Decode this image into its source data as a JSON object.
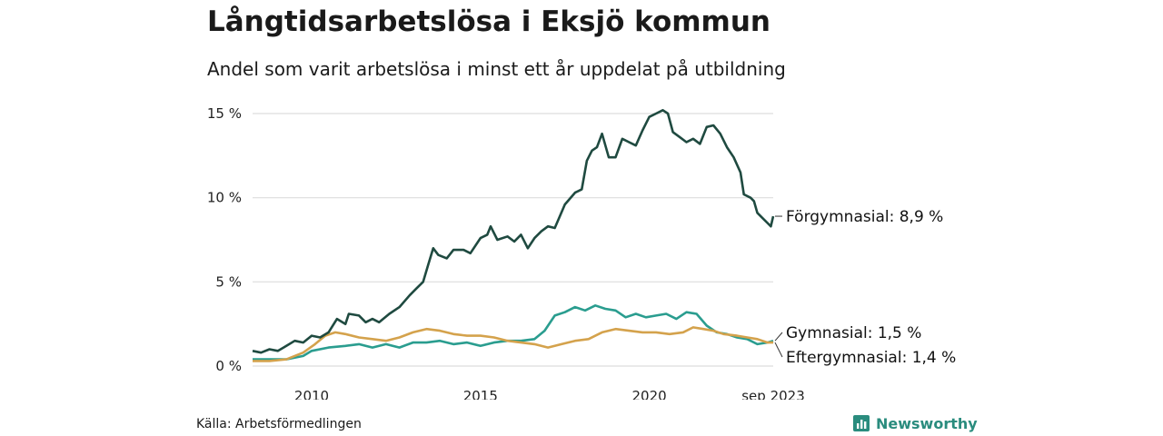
{
  "title": "Långtidsarbetslösa i Eksjö kommun",
  "subtitle": "Andel som varit arbetslösa i minst ett år uppdelat på utbildning",
  "source": "Källa: Arbetsförmedlingen",
  "brand": "Newsworthy",
  "colors": {
    "forgymnasial": "#1f4a40",
    "gymnasial": "#2a9d8f",
    "eftergymnasial": "#d4a24c",
    "grid": "#dddddd",
    "brand": "#2a8c7e"
  },
  "chart_data": {
    "type": "line",
    "title": "Långtidsarbetslösa i Eksjö kommun",
    "xlabel": "",
    "ylabel": "",
    "xlim": [
      2008.25,
      2023.67
    ],
    "ylim": [
      0,
      15
    ],
    "y_ticks": [
      0,
      5,
      10,
      15
    ],
    "y_tick_labels": [
      "0 %",
      "5 %",
      "10 %",
      "15 %"
    ],
    "x_ticks": [
      2010,
      2015,
      2020,
      2023.67
    ],
    "x_tick_labels": [
      "2010",
      "2015",
      "2020",
      "sep 2023"
    ],
    "series": [
      {
        "name": "Förgymnasial",
        "end_label": "Förgymnasial: 8,9 %",
        "color_key": "forgymnasial",
        "points": [
          [
            2008.25,
            0.9
          ],
          [
            2008.5,
            0.8
          ],
          [
            2008.75,
            1.0
          ],
          [
            2009.0,
            0.9
          ],
          [
            2009.25,
            1.2
          ],
          [
            2009.5,
            1.5
          ],
          [
            2009.75,
            1.4
          ],
          [
            2010.0,
            1.8
          ],
          [
            2010.25,
            1.7
          ],
          [
            2010.5,
            2.0
          ],
          [
            2010.75,
            2.8
          ],
          [
            2011.0,
            2.5
          ],
          [
            2011.1,
            3.1
          ],
          [
            2011.4,
            3.0
          ],
          [
            2011.6,
            2.6
          ],
          [
            2011.8,
            2.8
          ],
          [
            2012.0,
            2.6
          ],
          [
            2012.3,
            3.1
          ],
          [
            2012.6,
            3.5
          ],
          [
            2012.9,
            4.2
          ],
          [
            2013.1,
            4.6
          ],
          [
            2013.3,
            5.0
          ],
          [
            2013.45,
            6.0
          ],
          [
            2013.6,
            7.0
          ],
          [
            2013.75,
            6.6
          ],
          [
            2014.0,
            6.4
          ],
          [
            2014.2,
            6.9
          ],
          [
            2014.5,
            6.9
          ],
          [
            2014.7,
            6.7
          ],
          [
            2015.0,
            7.6
          ],
          [
            2015.2,
            7.8
          ],
          [
            2015.3,
            8.3
          ],
          [
            2015.5,
            7.5
          ],
          [
            2015.8,
            7.7
          ],
          [
            2016.0,
            7.4
          ],
          [
            2016.2,
            7.8
          ],
          [
            2016.4,
            7.0
          ],
          [
            2016.6,
            7.6
          ],
          [
            2016.8,
            8.0
          ],
          [
            2017.0,
            8.3
          ],
          [
            2017.2,
            8.2
          ],
          [
            2017.5,
            9.6
          ],
          [
            2017.8,
            10.3
          ],
          [
            2018.0,
            10.5
          ],
          [
            2018.15,
            12.2
          ],
          [
            2018.3,
            12.8
          ],
          [
            2018.45,
            13.0
          ],
          [
            2018.6,
            13.8
          ],
          [
            2018.8,
            12.4
          ],
          [
            2019.0,
            12.4
          ],
          [
            2019.2,
            13.5
          ],
          [
            2019.4,
            13.3
          ],
          [
            2019.6,
            13.1
          ],
          [
            2019.8,
            14.0
          ],
          [
            2020.0,
            14.8
          ],
          [
            2020.2,
            15.0
          ],
          [
            2020.4,
            15.2
          ],
          [
            2020.55,
            15.0
          ],
          [
            2020.7,
            13.9
          ],
          [
            2020.9,
            13.6
          ],
          [
            2021.1,
            13.3
          ],
          [
            2021.3,
            13.5
          ],
          [
            2021.5,
            13.2
          ],
          [
            2021.7,
            14.2
          ],
          [
            2021.9,
            14.3
          ],
          [
            2022.1,
            13.8
          ],
          [
            2022.3,
            13.0
          ],
          [
            2022.5,
            12.4
          ],
          [
            2022.7,
            11.5
          ],
          [
            2022.8,
            10.2
          ],
          [
            2023.0,
            10.0
          ],
          [
            2023.1,
            9.8
          ],
          [
            2023.2,
            9.1
          ],
          [
            2023.35,
            8.8
          ],
          [
            2023.5,
            8.5
          ],
          [
            2023.6,
            8.3
          ],
          [
            2023.67,
            8.9
          ]
        ]
      },
      {
        "name": "Gymnasial",
        "end_label": "Gymnasial: 1,5 %",
        "color_key": "gymnasial",
        "points": [
          [
            2008.25,
            0.4
          ],
          [
            2008.75,
            0.4
          ],
          [
            2009.25,
            0.4
          ],
          [
            2009.75,
            0.6
          ],
          [
            2010.0,
            0.9
          ],
          [
            2010.5,
            1.1
          ],
          [
            2011.0,
            1.2
          ],
          [
            2011.4,
            1.3
          ],
          [
            2011.8,
            1.1
          ],
          [
            2012.2,
            1.3
          ],
          [
            2012.6,
            1.1
          ],
          [
            2013.0,
            1.4
          ],
          [
            2013.4,
            1.4
          ],
          [
            2013.8,
            1.5
          ],
          [
            2014.2,
            1.3
          ],
          [
            2014.6,
            1.4
          ],
          [
            2015.0,
            1.2
          ],
          [
            2015.4,
            1.4
          ],
          [
            2015.8,
            1.5
          ],
          [
            2016.2,
            1.5
          ],
          [
            2016.6,
            1.6
          ],
          [
            2016.9,
            2.1
          ],
          [
            2017.2,
            3.0
          ],
          [
            2017.5,
            3.2
          ],
          [
            2017.8,
            3.5
          ],
          [
            2018.1,
            3.3
          ],
          [
            2018.4,
            3.6
          ],
          [
            2018.7,
            3.4
          ],
          [
            2019.0,
            3.3
          ],
          [
            2019.3,
            2.9
          ],
          [
            2019.6,
            3.1
          ],
          [
            2019.9,
            2.9
          ],
          [
            2020.2,
            3.0
          ],
          [
            2020.5,
            3.1
          ],
          [
            2020.8,
            2.8
          ],
          [
            2021.1,
            3.2
          ],
          [
            2021.4,
            3.1
          ],
          [
            2021.7,
            2.4
          ],
          [
            2022.0,
            2.0
          ],
          [
            2022.3,
            1.9
          ],
          [
            2022.6,
            1.7
          ],
          [
            2022.9,
            1.6
          ],
          [
            2023.2,
            1.3
          ],
          [
            2023.5,
            1.4
          ],
          [
            2023.67,
            1.5
          ]
        ]
      },
      {
        "name": "Eftergymnasial",
        "end_label": "Eftergymnasial: 1,4 %",
        "color_key": "eftergymnasial",
        "points": [
          [
            2008.25,
            0.3
          ],
          [
            2008.75,
            0.3
          ],
          [
            2009.25,
            0.4
          ],
          [
            2009.75,
            0.8
          ],
          [
            2010.1,
            1.3
          ],
          [
            2010.4,
            1.8
          ],
          [
            2010.7,
            2.0
          ],
          [
            2011.0,
            1.9
          ],
          [
            2011.4,
            1.7
          ],
          [
            2011.8,
            1.6
          ],
          [
            2012.2,
            1.5
          ],
          [
            2012.6,
            1.7
          ],
          [
            2013.0,
            2.0
          ],
          [
            2013.4,
            2.2
          ],
          [
            2013.8,
            2.1
          ],
          [
            2014.2,
            1.9
          ],
          [
            2014.6,
            1.8
          ],
          [
            2015.0,
            1.8
          ],
          [
            2015.4,
            1.7
          ],
          [
            2015.8,
            1.5
          ],
          [
            2016.2,
            1.4
          ],
          [
            2016.6,
            1.3
          ],
          [
            2017.0,
            1.1
          ],
          [
            2017.4,
            1.3
          ],
          [
            2017.8,
            1.5
          ],
          [
            2018.2,
            1.6
          ],
          [
            2018.6,
            2.0
          ],
          [
            2019.0,
            2.2
          ],
          [
            2019.4,
            2.1
          ],
          [
            2019.8,
            2.0
          ],
          [
            2020.2,
            2.0
          ],
          [
            2020.6,
            1.9
          ],
          [
            2021.0,
            2.0
          ],
          [
            2021.3,
            2.3
          ],
          [
            2021.6,
            2.2
          ],
          [
            2021.9,
            2.1
          ],
          [
            2022.2,
            1.9
          ],
          [
            2022.6,
            1.8
          ],
          [
            2022.9,
            1.7
          ],
          [
            2023.2,
            1.6
          ],
          [
            2023.5,
            1.4
          ],
          [
            2023.67,
            1.4
          ]
        ]
      }
    ]
  }
}
